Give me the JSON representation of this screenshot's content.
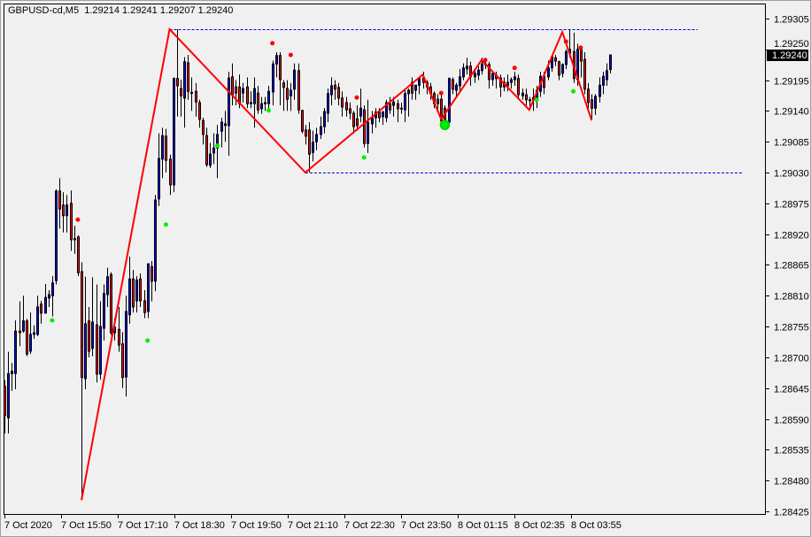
{
  "header": {
    "symbol": "GBPUSD-cd,M5",
    "ohlc": "1.29214 1.29241 1.29207 1.29240"
  },
  "chart_data": {
    "type": "candlestick",
    "symbol": "GBPUSD-cd",
    "timeframe": "M5",
    "ylim": [
      1.28425,
      1.2933
    ],
    "y_ticks": [
      "1.29305",
      "1.29250",
      "1.29195",
      "1.29140",
      "1.29085",
      "1.29030",
      "1.28975",
      "1.28920",
      "1.28865",
      "1.28810",
      "1.28755",
      "1.28700",
      "1.28645",
      "1.28590",
      "1.28535",
      "1.28480",
      "1.28425"
    ],
    "x_ticks": [
      "7 Oct 2020",
      "7 Oct 15:50",
      "7 Oct 17:10",
      "7 Oct 18:30",
      "7 Oct 19:50",
      "7 Oct 21:10",
      "7 Oct 22:30",
      "7 Oct 23:50",
      "8 Oct 01:15",
      "8 Oct 02:35",
      "8 Oct 03:55"
    ],
    "current_price": "1.29240",
    "colors": {
      "bull": "#0000ff",
      "bear": "#ff0000",
      "zigzag": "#ff0000",
      "level": "#0000cc",
      "up_marker": "#ff0000",
      "down_marker": "#00ee00"
    },
    "candles_ohlc": [
      [
        1.28648,
        1.28659,
        1.28564,
        1.28596
      ],
      [
        1.28592,
        1.2871,
        1.28564,
        1.28671
      ],
      [
        1.28671,
        1.2869,
        1.2864,
        1.28675
      ],
      [
        1.28671,
        1.28766,
        1.28643,
        1.28747
      ],
      [
        1.28747,
        1.288,
        1.2872,
        1.28744
      ],
      [
        1.28747,
        1.2881,
        1.28744,
        1.28765
      ],
      [
        1.28765,
        1.28769,
        1.28702,
        1.28706
      ],
      [
        1.28711,
        1.2878,
        1.28706,
        1.28741
      ],
      [
        1.28741,
        1.28757,
        1.28733,
        1.28744
      ],
      [
        1.28741,
        1.2881,
        1.28738,
        1.2879
      ],
      [
        1.28795,
        1.28801,
        1.2876,
        1.28779
      ],
      [
        1.28779,
        1.28831,
        1.28778,
        1.28807
      ],
      [
        1.28806,
        1.2882,
        1.2879,
        1.28812
      ],
      [
        1.2881,
        1.28845,
        1.28773,
        1.28833
      ],
      [
        1.28837,
        1.29,
        1.2883,
        1.28997
      ],
      [
        1.28997,
        1.2902,
        1.2893,
        1.28965
      ],
      [
        1.28972,
        1.28995,
        1.28923,
        1.28953
      ],
      [
        1.28953,
        1.2899,
        1.28923,
        1.28972
      ],
      [
        1.28975,
        1.28998,
        1.2889,
        1.2891
      ],
      [
        1.2891,
        1.28935,
        1.28885,
        1.28912
      ],
      [
        1.28915,
        1.28918,
        1.28845,
        1.28851
      ],
      [
        1.28853,
        1.2887,
        1.28445,
        1.28664
      ],
      [
        1.28662,
        1.28844,
        1.28643,
        1.2876
      ],
      [
        1.28765,
        1.2879,
        1.287,
        1.28711
      ],
      [
        1.28716,
        1.28843,
        1.28702,
        1.28763
      ],
      [
        1.28758,
        1.2883,
        1.28655,
        1.2867
      ],
      [
        1.2867,
        1.288,
        1.2866,
        1.28755
      ],
      [
        1.28752,
        1.2883,
        1.2873,
        1.28814
      ],
      [
        1.28812,
        1.2886,
        1.2879,
        1.28844
      ],
      [
        1.28848,
        1.28852,
        1.2874,
        1.28744
      ],
      [
        1.28744,
        1.2877,
        1.2873,
        1.28754
      ],
      [
        1.2875,
        1.2879,
        1.2871,
        1.28722
      ],
      [
        1.28724,
        1.28745,
        1.28645,
        1.28664
      ],
      [
        1.28665,
        1.2881,
        1.2863,
        1.28782
      ],
      [
        1.28776,
        1.2888,
        1.2876,
        1.2884
      ],
      [
        1.2884,
        1.28856,
        1.2878,
        1.2879
      ],
      [
        1.28801,
        1.28845,
        1.2878,
        1.28838
      ],
      [
        1.2884,
        1.2885,
        1.2879,
        1.28801
      ],
      [
        1.28801,
        1.2882,
        1.2877,
        1.2878
      ],
      [
        1.28782,
        1.28868,
        1.2877,
        1.28867
      ],
      [
        1.28862,
        1.28872,
        1.288,
        1.28836
      ],
      [
        1.28836,
        1.2899,
        1.28818,
        1.28981
      ],
      [
        1.28983,
        1.291,
        1.2897,
        1.29055
      ],
      [
        1.29054,
        1.2911,
        1.2902,
        1.29096
      ],
      [
        1.29095,
        1.29108,
        1.2903,
        1.29052
      ],
      [
        1.29054,
        1.29062,
        1.2899,
        1.29008
      ],
      [
        1.29008,
        1.292,
        1.28995,
        1.29198
      ],
      [
        1.29198,
        1.29286,
        1.2913,
        1.29185
      ],
      [
        1.2918,
        1.29196,
        1.2913,
        1.29167
      ],
      [
        1.29163,
        1.29236,
        1.2911,
        1.29228
      ],
      [
        1.29226,
        1.2924,
        1.2916,
        1.29175
      ],
      [
        1.29173,
        1.292,
        1.2914,
        1.29172
      ],
      [
        1.29175,
        1.2919,
        1.2913,
        1.29156
      ],
      [
        1.29155,
        1.2916,
        1.2911,
        1.29125
      ],
      [
        1.29123,
        1.29128,
        1.2908,
        1.29098
      ],
      [
        1.29096,
        1.2911,
        1.2904,
        1.29044
      ],
      [
        1.29043,
        1.29083,
        1.29038,
        1.29063
      ],
      [
        1.29065,
        1.291,
        1.29045,
        1.29074
      ],
      [
        1.29074,
        1.29115,
        1.2902,
        1.29098
      ],
      [
        1.29104,
        1.29128,
        1.29075,
        1.2912
      ],
      [
        1.29114,
        1.2914,
        1.29085,
        1.29117
      ],
      [
        1.29114,
        1.2921,
        1.2906,
        1.29199
      ],
      [
        1.29201,
        1.29225,
        1.2915,
        1.29169
      ],
      [
        1.29183,
        1.29195,
        1.2915,
        1.29172
      ],
      [
        1.29183,
        1.29205,
        1.29145,
        1.29153
      ],
      [
        1.29172,
        1.2919,
        1.29155,
        1.2918
      ],
      [
        1.29183,
        1.292,
        1.29145,
        1.29153
      ],
      [
        1.29153,
        1.29175,
        1.29145,
        1.29155
      ],
      [
        1.29153,
        1.292,
        1.2911,
        1.2918
      ],
      [
        1.29172,
        1.29185,
        1.29135,
        1.29142
      ],
      [
        1.29144,
        1.29165,
        1.29135,
        1.29153
      ],
      [
        1.29153,
        1.29165,
        1.2914,
        1.29155
      ],
      [
        1.29153,
        1.29185,
        1.2914,
        1.29175
      ],
      [
        1.29174,
        1.2923,
        1.2915,
        1.29224
      ],
      [
        1.29224,
        1.29245,
        1.292,
        1.29239
      ],
      [
        1.29239,
        1.29245,
        1.2915,
        1.29196
      ],
      [
        1.2919,
        1.29195,
        1.2914,
        1.29182
      ],
      [
        1.2918,
        1.29195,
        1.2914,
        1.29161
      ],
      [
        1.29167,
        1.2919,
        1.2914,
        1.29177
      ],
      [
        1.29179,
        1.29225,
        1.2916,
        1.29213
      ],
      [
        1.29212,
        1.29225,
        1.29135,
        1.29142
      ],
      [
        1.29141,
        1.29142,
        1.291,
        1.29104
      ],
      [
        1.29106,
        1.29115,
        1.2908,
        1.29095
      ],
      [
        1.29106,
        1.2912,
        1.2903,
        1.29063
      ],
      [
        1.29066,
        1.29105,
        1.2905,
        1.29084
      ],
      [
        1.29085,
        1.2911,
        1.2907,
        1.29098
      ],
      [
        1.29098,
        1.2913,
        1.2909,
        1.29112
      ],
      [
        1.29112,
        1.29145,
        1.291,
        1.29139
      ],
      [
        1.29136,
        1.2918,
        1.2912,
        1.29171
      ],
      [
        1.29169,
        1.292,
        1.2915,
        1.29185
      ],
      [
        1.29186,
        1.29195,
        1.2916,
        1.29179
      ],
      [
        1.29182,
        1.2919,
        1.2915,
        1.29163
      ],
      [
        1.29163,
        1.29175,
        1.2913,
        1.29147
      ],
      [
        1.29155,
        1.29165,
        1.2913,
        1.29142
      ],
      [
        1.29144,
        1.29155,
        1.29125,
        1.29136
      ],
      [
        1.29136,
        1.2914,
        1.291,
        1.29112
      ],
      [
        1.29126,
        1.2915,
        1.29105,
        1.29114
      ],
      [
        1.29131,
        1.2918,
        1.2912,
        1.29145
      ],
      [
        1.29142,
        1.2915,
        1.29075,
        1.29082
      ],
      [
        1.29082,
        1.2916,
        1.29065,
        1.2912
      ],
      [
        1.29117,
        1.2914,
        1.291,
        1.29128
      ],
      [
        1.29128,
        1.29145,
        1.2911,
        1.29138
      ],
      [
        1.29138,
        1.29145,
        1.2912,
        1.29128
      ],
      [
        1.2913,
        1.2914,
        1.29115,
        1.29138
      ],
      [
        1.29128,
        1.2916,
        1.2912,
        1.29155
      ],
      [
        1.29153,
        1.29165,
        1.29135,
        1.29142
      ],
      [
        1.2915,
        1.29165,
        1.2913,
        1.29156
      ],
      [
        1.29153,
        1.2916,
        1.2912,
        1.29144
      ],
      [
        1.29145,
        1.29155,
        1.29135,
        1.29145
      ],
      [
        1.29142,
        1.2918,
        1.2912,
        1.29171
      ],
      [
        1.29171,
        1.2918,
        1.2913,
        1.29177
      ],
      [
        1.29191,
        1.292,
        1.2916,
        1.29172
      ],
      [
        1.29177,
        1.29185,
        1.2916,
        1.29186
      ],
      [
        1.29186,
        1.292,
        1.2917,
        1.29198
      ],
      [
        1.29199,
        1.2921,
        1.2918,
        1.29191
      ],
      [
        1.29191,
        1.29195,
        1.2917,
        1.29183
      ],
      [
        1.29183,
        1.2919,
        1.2916,
        1.29171
      ],
      [
        1.29171,
        1.29175,
        1.29145,
        1.29153
      ],
      [
        1.29161,
        1.2917,
        1.2914,
        1.29153
      ],
      [
        1.29161,
        1.2917,
        1.29112,
        1.29122
      ],
      [
        1.29145,
        1.2915,
        1.2911,
        1.2912
      ],
      [
        1.2912,
        1.292,
        1.29115,
        1.29198
      ],
      [
        1.29196,
        1.292,
        1.2917,
        1.29179
      ],
      [
        1.29177,
        1.2919,
        1.29165,
        1.29186
      ],
      [
        1.29185,
        1.29215,
        1.29175,
        1.29201
      ],
      [
        1.29201,
        1.29225,
        1.29195,
        1.29217
      ],
      [
        1.29215,
        1.29235,
        1.29205,
        1.2922
      ],
      [
        1.2922,
        1.29228,
        1.29185,
        1.29201
      ],
      [
        1.29201,
        1.29215,
        1.2919,
        1.29207
      ],
      [
        1.29204,
        1.2922,
        1.29195,
        1.29213
      ],
      [
        1.29212,
        1.29235,
        1.29205,
        1.29224
      ],
      [
        1.29224,
        1.2923,
        1.29215,
        1.29224
      ],
      [
        1.29223,
        1.29228,
        1.2918,
        1.29196
      ],
      [
        1.29196,
        1.2921,
        1.29185,
        1.29207
      ],
      [
        1.29204,
        1.2921,
        1.2918,
        1.29198
      ],
      [
        1.29199,
        1.29205,
        1.29165,
        1.29183
      ],
      [
        1.29183,
        1.292,
        1.29175,
        1.29191
      ],
      [
        1.29191,
        1.29205,
        1.29175,
        1.29185
      ],
      [
        1.29191,
        1.292,
        1.2918,
        1.29196
      ],
      [
        1.29196,
        1.2921,
        1.29185,
        1.29201
      ],
      [
        1.29198,
        1.29205,
        1.2916,
        1.29169
      ],
      [
        1.29167,
        1.2918,
        1.2916,
        1.29172
      ],
      [
        1.29169,
        1.2918,
        1.2915,
        1.2916
      ],
      [
        1.2916,
        1.29165,
        1.29145,
        1.2916
      ],
      [
        1.2916,
        1.2918,
        1.2914,
        1.29164
      ],
      [
        1.29161,
        1.29185,
        1.29145,
        1.29177
      ],
      [
        1.29175,
        1.2921,
        1.29165,
        1.29202
      ],
      [
        1.29202,
        1.2921,
        1.2917,
        1.29182
      ],
      [
        1.29201,
        1.2923,
        1.29195,
        1.29217
      ],
      [
        1.29217,
        1.2924,
        1.2921,
        1.29237
      ],
      [
        1.29235,
        1.2924,
        1.2922,
        1.29229
      ],
      [
        1.29228,
        1.2923,
        1.29195,
        1.29204
      ],
      [
        1.29207,
        1.29225,
        1.292,
        1.29223
      ],
      [
        1.29223,
        1.2925,
        1.29215,
        1.29246
      ],
      [
        1.29243,
        1.29285,
        1.29235,
        1.2925
      ],
      [
        1.29246,
        1.2928,
        1.2919,
        1.29198
      ],
      [
        1.29196,
        1.2926,
        1.29185,
        1.2925
      ],
      [
        1.2925,
        1.29255,
        1.292,
        1.29229
      ],
      [
        1.29232,
        1.29245,
        1.2917,
        1.29179
      ],
      [
        1.29179,
        1.2919,
        1.2914,
        1.29155
      ],
      [
        1.2916,
        1.2917,
        1.29125,
        1.29145
      ],
      [
        1.29145,
        1.2917,
        1.29133,
        1.29166
      ],
      [
        1.29166,
        1.292,
        1.29155,
        1.29186
      ],
      [
        1.29186,
        1.2921,
        1.2917,
        1.29202
      ],
      [
        1.29196,
        1.29225,
        1.29185,
        1.29212
      ],
      [
        1.29214,
        1.29241,
        1.29207,
        1.2924
      ]
    ],
    "zigzag": [
      {
        "bar": 21,
        "price": 1.28445
      },
      {
        "bar": 45,
        "price": 1.29286
      },
      {
        "bar": 82,
        "price": 1.2903
      },
      {
        "bar": 114,
        "price": 1.29205
      },
      {
        "bar": 119,
        "price": 1.29125
      },
      {
        "bar": 130,
        "price": 1.29231
      },
      {
        "bar": 143,
        "price": 1.29142
      },
      {
        "bar": 152,
        "price": 1.29281
      },
      {
        "bar": 160,
        "price": 1.29123
      }
    ],
    "up_markers": [
      {
        "bar": 20,
        "price": 1.28946
      },
      {
        "bar": 73,
        "price": 1.29261
      },
      {
        "bar": 78,
        "price": 1.2924
      },
      {
        "bar": 96,
        "price": 1.29164
      },
      {
        "bar": 119,
        "price": 1.29172
      },
      {
        "bar": 131,
        "price": 1.29231
      },
      {
        "bar": 139,
        "price": 1.29217
      },
      {
        "bar": 153,
        "price": 1.29264
      },
      {
        "bar": 157,
        "price": 1.29253
      }
    ],
    "down_markers": [
      {
        "bar": 13,
        "price": 1.28766
      },
      {
        "bar": 39,
        "price": 1.2873
      },
      {
        "bar": 44,
        "price": 1.28937
      },
      {
        "bar": 58,
        "price": 1.29078
      },
      {
        "bar": 72,
        "price": 1.29141
      },
      {
        "bar": 98,
        "price": 1.29057
      },
      {
        "bar": 145,
        "price": 1.2916
      },
      {
        "bar": 155,
        "price": 1.29175
      }
    ],
    "signal_circle": {
      "bar": 120,
      "price": 1.29115
    },
    "levels": [
      {
        "price": 1.29286,
        "from_bar": 45
      },
      {
        "price": 1.2903,
        "from_bar": 82
      }
    ]
  }
}
